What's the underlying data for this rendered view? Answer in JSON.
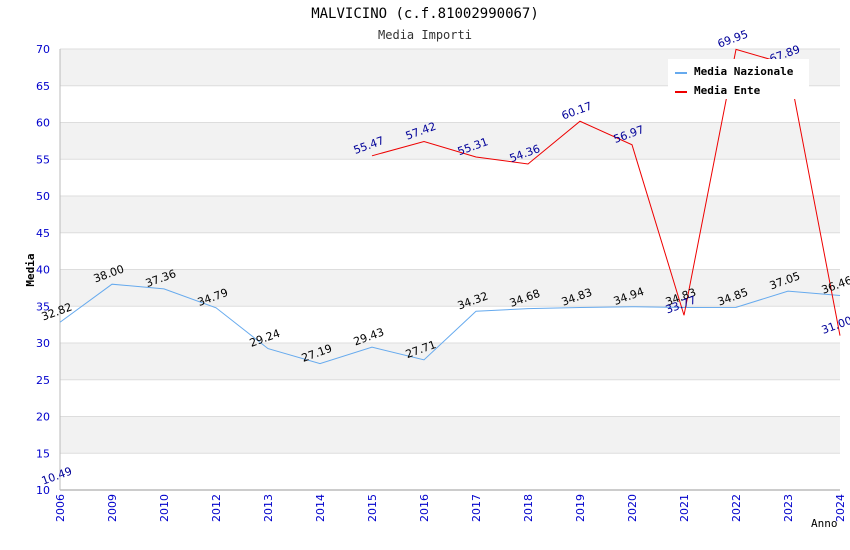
{
  "chart_data": {
    "type": "line",
    "title": "MALVICINO (c.f.81002990067)",
    "subtitle": "Media Importi",
    "xlabel": "Anno",
    "ylabel": "Media",
    "ylim": [
      10,
      70
    ],
    "y_ticks": [
      10,
      15,
      20,
      25,
      30,
      35,
      40,
      45,
      50,
      55,
      60,
      65,
      70
    ],
    "categories": [
      "2006",
      "2009",
      "2010",
      "2012",
      "2013",
      "2014",
      "2015",
      "2016",
      "2017",
      "2018",
      "2019",
      "2020",
      "2021",
      "2022",
      "2023",
      "2024"
    ],
    "series": [
      {
        "name": "Media Nazionale",
        "color": "#66aaee",
        "label_color": "#000000",
        "values": [
          32.82,
          38.0,
          37.36,
          34.79,
          29.24,
          27.19,
          29.43,
          27.71,
          34.32,
          34.68,
          34.83,
          34.94,
          34.83,
          34.85,
          37.05,
          36.46
        ],
        "labels": [
          "32.82",
          "38.00",
          "37.36",
          "34.79",
          "29.24",
          "27.19",
          "29.43",
          "27.71",
          "34.32",
          "34.68",
          "34.83",
          "34.94",
          "34.83",
          "34.85",
          "37.05",
          "36.46"
        ]
      },
      {
        "name": "Media Ente",
        "color": "#ee0000",
        "label_color": "#000099",
        "values": [
          10.49,
          null,
          null,
          null,
          null,
          null,
          55.47,
          57.42,
          55.31,
          54.36,
          60.17,
          56.97,
          33.77,
          69.95,
          67.89,
          31.0
        ],
        "labels": [
          "10.49",
          null,
          null,
          null,
          null,
          null,
          "55.47",
          "57.42",
          "55.31",
          "54.36",
          "60.17",
          "56.97",
          "33.77",
          "69.95",
          "67.89",
          "31.00"
        ]
      }
    ],
    "legend_position": "top-right",
    "grid": true,
    "colors": {
      "band": "#f2f2f2",
      "grid": "#dddddd",
      "tick_text": "#0000cc",
      "title_text": "#333333"
    }
  }
}
